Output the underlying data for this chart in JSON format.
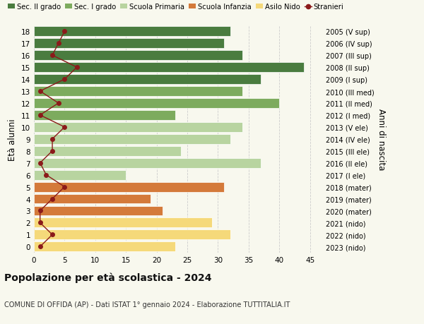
{
  "ages": [
    18,
    17,
    16,
    15,
    14,
    13,
    12,
    11,
    10,
    9,
    8,
    7,
    6,
    5,
    4,
    3,
    2,
    1,
    0
  ],
  "bar_values": [
    32,
    31,
    34,
    44,
    37,
    34,
    40,
    23,
    34,
    32,
    24,
    37,
    15,
    31,
    19,
    21,
    29,
    32,
    23
  ],
  "bar_colors": [
    "#4a7c3f",
    "#4a7c3f",
    "#4a7c3f",
    "#4a7c3f",
    "#4a7c3f",
    "#7dab5e",
    "#7dab5e",
    "#7dab5e",
    "#b8d4a0",
    "#b8d4a0",
    "#b8d4a0",
    "#b8d4a0",
    "#b8d4a0",
    "#d47a3a",
    "#d47a3a",
    "#d47a3a",
    "#f5d97a",
    "#f5d97a",
    "#f5d97a"
  ],
  "stranieri": [
    5,
    4,
    3,
    7,
    5,
    1,
    4,
    1,
    5,
    3,
    3,
    1,
    2,
    5,
    3,
    1,
    1,
    3,
    1
  ],
  "right_labels": [
    "2005 (V sup)",
    "2006 (IV sup)",
    "2007 (III sup)",
    "2008 (II sup)",
    "2009 (I sup)",
    "2010 (III med)",
    "2011 (II med)",
    "2012 (I med)",
    "2013 (V ele)",
    "2014 (IV ele)",
    "2015 (III ele)",
    "2016 (II ele)",
    "2017 (I ele)",
    "2018 (mater)",
    "2019 (mater)",
    "2020 (mater)",
    "2021 (nido)",
    "2022 (nido)",
    "2023 (nido)"
  ],
  "legend_labels": [
    "Sec. II grado",
    "Sec. I grado",
    "Scuola Primaria",
    "Scuola Infanzia",
    "Asilo Nido",
    "Stranieri"
  ],
  "legend_colors": [
    "#4a7c3f",
    "#7dab5e",
    "#b8d4a0",
    "#d47a3a",
    "#f5d97a",
    "#b22222"
  ],
  "ylabel_left": "Età alunni",
  "ylabel_right": "Anni di nascita",
  "title": "Popolazione per età scolastica - 2024",
  "subtitle": "COMUNE DI OFFIDA (AP) - Dati ISTAT 1° gennaio 2024 - Elaborazione TUTTITALIA.IT",
  "xlim": [
    0,
    47
  ],
  "background_color": "#f8f8ee",
  "stranieri_color": "#8b1a1a",
  "stranieri_line_color": "#8b1a1a",
  "grid_color": "#cccccc"
}
